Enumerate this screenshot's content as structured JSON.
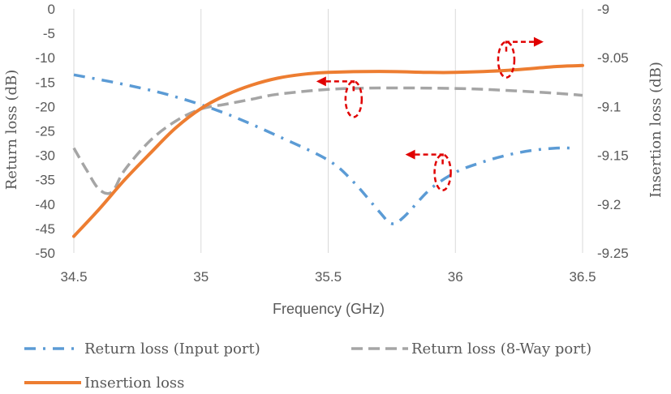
{
  "chart_data": {
    "type": "line",
    "title": "",
    "xlabel": "Frequency (GHz)",
    "ylabel_left": "Return loss (dB)",
    "ylabel_right": "Insertion loss (dB)",
    "xlim": [
      34.5,
      36.5
    ],
    "ylim_left": [
      -50,
      0
    ],
    "ylim_right": [
      -9.25,
      -9.0
    ],
    "x_ticks": [
      "34.5",
      "35",
      "35.5",
      "36",
      "36.5"
    ],
    "y_ticks_left": [
      "0",
      "-5",
      "-10",
      "-15",
      "-20",
      "-25",
      "-30",
      "-35",
      "-40",
      "-45",
      "-50"
    ],
    "y_ticks_right": [
      "-9",
      "-9.05",
      "-9.1",
      "-9.15",
      "-9.2",
      "-9.25"
    ],
    "grid": "vertical",
    "legend_position": "bottom",
    "series": [
      {
        "name": "Return loss (Input port)",
        "axis": "left",
        "color": "#5B9BD5",
        "style": "dash-dot",
        "x": [
          34.5,
          34.7,
          34.9,
          35.1,
          35.3,
          35.5,
          35.6,
          35.7,
          35.75,
          35.8,
          35.9,
          36.0,
          36.1,
          36.2,
          36.3,
          36.4,
          36.45
        ],
        "y": [
          -13.5,
          -15.5,
          -18.0,
          -21.5,
          -26.0,
          -31.0,
          -35.5,
          -41.5,
          -44.0,
          -42.5,
          -37.0,
          -33.5,
          -31.5,
          -30.0,
          -29.0,
          -28.5,
          -28.5
        ]
      },
      {
        "name": "Return loss (8-Way port)",
        "axis": "left",
        "color": "#A5A5A5",
        "style": "dash",
        "x": [
          34.5,
          34.55,
          34.6,
          34.65,
          34.7,
          34.8,
          34.9,
          35.0,
          35.1,
          35.2,
          35.3,
          35.5,
          35.7,
          36.0,
          36.2,
          36.4,
          36.5
        ],
        "y": [
          -28.5,
          -33.0,
          -37.0,
          -37.5,
          -33.0,
          -27.0,
          -23.0,
          -20.5,
          -19.5,
          -18.5,
          -17.5,
          -16.5,
          -16.2,
          -16.3,
          -16.7,
          -17.3,
          -17.7
        ]
      },
      {
        "name": "Insertion loss",
        "axis": "right",
        "color": "#ED7D31",
        "style": "solid",
        "x": [
          34.5,
          34.6,
          34.7,
          34.8,
          34.9,
          35.0,
          35.1,
          35.2,
          35.3,
          35.4,
          35.5,
          35.7,
          35.9,
          36.0,
          36.2,
          36.4,
          36.5
        ],
        "y": [
          -9.233,
          -9.205,
          -9.175,
          -9.148,
          -9.122,
          -9.102,
          -9.088,
          -9.078,
          -9.071,
          -9.067,
          -9.065,
          -9.064,
          -9.065,
          -9.065,
          -9.063,
          -9.059,
          -9.058
        ]
      }
    ],
    "annotations": [
      {
        "target": "Insertion loss",
        "points_to": "right-axis",
        "at": [
          36.2,
          -9.052
        ]
      },
      {
        "target": "Return loss (8-Way port)",
        "points_to": "left-axis",
        "at": [
          35.6,
          -18.5
        ]
      },
      {
        "target": "Return loss (Input port)",
        "points_to": "left-axis",
        "at": [
          35.95,
          -33.5
        ]
      }
    ]
  }
}
